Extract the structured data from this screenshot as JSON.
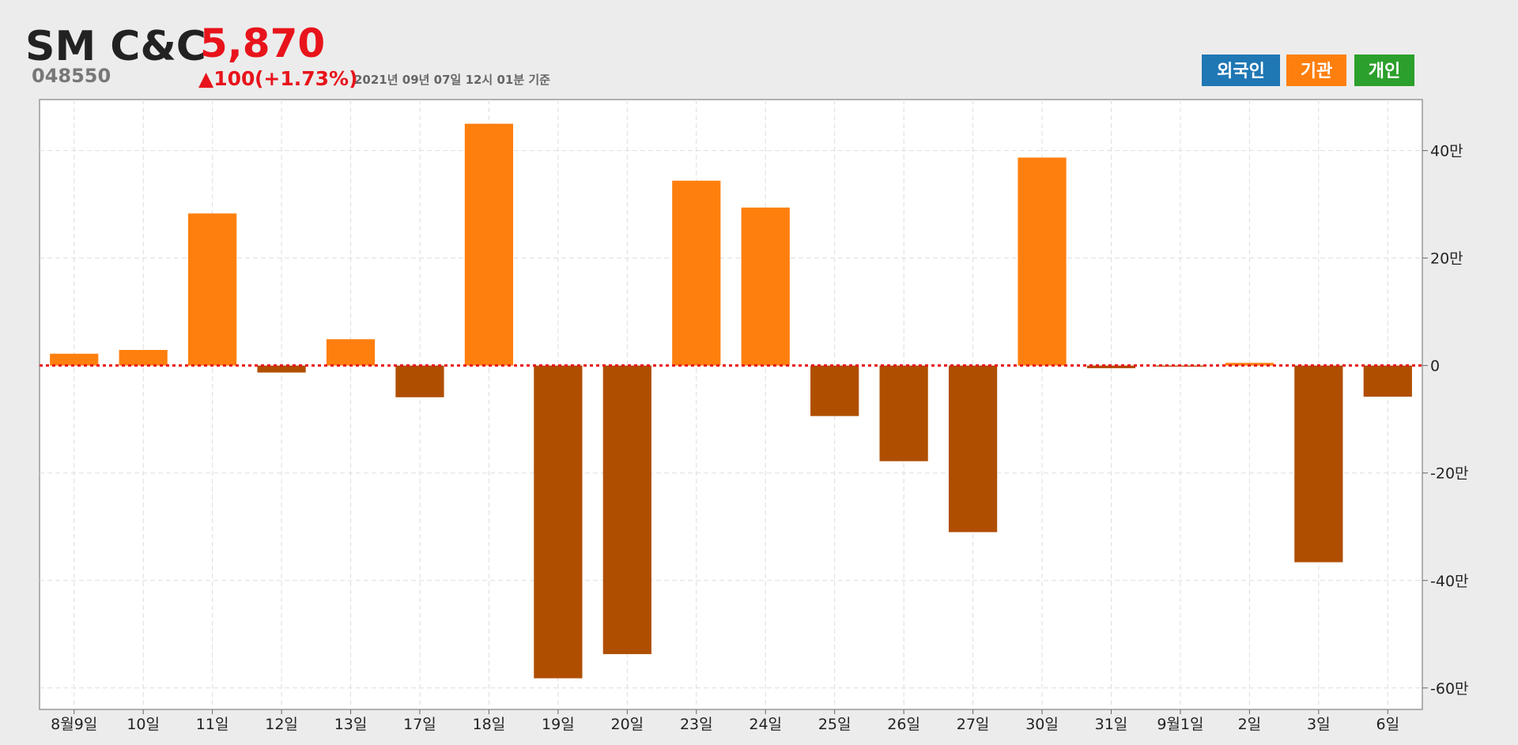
{
  "header": {
    "name": "SM C&C",
    "price": "5,870",
    "code": "048550",
    "change": "▲100",
    "change_pct": "(+1.73%)",
    "timestamp": "2021년 09년 07일 12시 01분 기준"
  },
  "buttons": [
    {
      "label": "외국인",
      "color": "#1f77b4"
    },
    {
      "label": "기관",
      "color": "#ff7f0e"
    },
    {
      "label": "개인",
      "color": "#2ca02c"
    }
  ],
  "chart_data": {
    "type": "bar",
    "categories": [
      "8월9일",
      "10일",
      "11일",
      "12일",
      "13일",
      "17일",
      "18일",
      "19일",
      "20일",
      "23일",
      "24일",
      "25일",
      "26일",
      "27일",
      "30일",
      "31일",
      "9월1일",
      "2일",
      "3일",
      "6일"
    ],
    "values": [
      2.2,
      2.9,
      28.3,
      -1.3,
      4.9,
      -5.9,
      45.0,
      -58.2,
      -53.7,
      34.4,
      29.4,
      -9.4,
      -17.8,
      -31.0,
      38.7,
      -0.5,
      -0.2,
      0.5,
      -36.6,
      -5.8
    ],
    "positive_color": "#ff7f0e",
    "negative_color": "#b04e00",
    "zero_line_color": "#e8131b",
    "ylim": [
      -64,
      49.5
    ],
    "yticks": [
      {
        "value": -60,
        "label": "-60만"
      },
      {
        "value": -40,
        "label": "-40만"
      },
      {
        "value": -20,
        "label": "-20만"
      },
      0,
      {
        "value": 20,
        "label": "20만"
      },
      {
        "value": 40,
        "label": "40만"
      }
    ],
    "grid": true
  }
}
